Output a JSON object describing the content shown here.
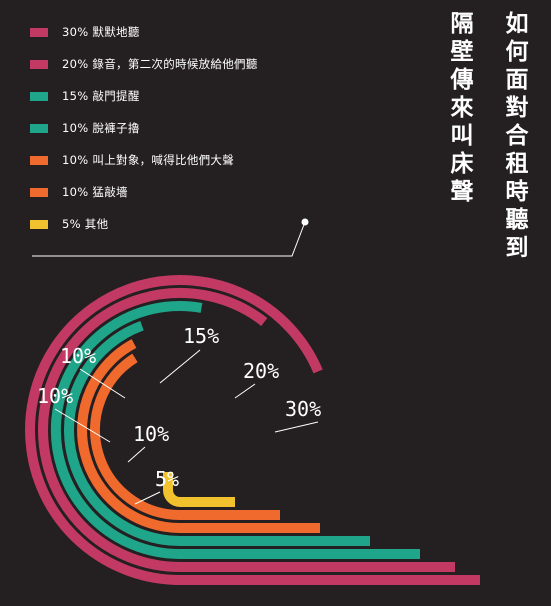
{
  "chart_data": {
    "type": "arc-bar",
    "title": "如何面對合租時聽到",
    "subtitle": "隔壁傳來叫床聲",
    "series": [
      {
        "label": "默默地聽",
        "value": 30,
        "value_label": "30%",
        "color": "#c23a63"
      },
      {
        "label": "錄音，第二次的時候放給他們聽",
        "value": 20,
        "value_label": "20%",
        "color": "#c23a63"
      },
      {
        "label": "敲門提醒",
        "value": 15,
        "value_label": "15%",
        "color": "#1fa68a"
      },
      {
        "label": "脫褲子擼",
        "value": 10,
        "value_label": "10%",
        "color": "#1fa68a"
      },
      {
        "label": "叫上對象，喊得比他們大聲",
        "value": 10,
        "value_label": "10%",
        "color": "#ef6a2c"
      },
      {
        "label": "猛敲墻",
        "value": 10,
        "value_label": "10%",
        "color": "#ef6a2c"
      },
      {
        "label": "其他",
        "value": 5,
        "value_label": "5%",
        "color": "#f2c12e"
      }
    ]
  }
}
